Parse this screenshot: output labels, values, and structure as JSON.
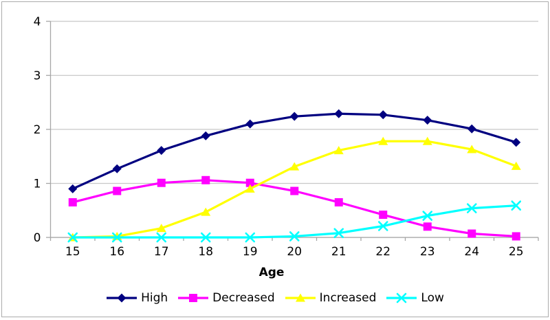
{
  "chart_data": {
    "type": "line",
    "title": "",
    "xlabel": "Age",
    "ylabel": "",
    "categories": [
      15,
      16,
      17,
      18,
      19,
      20,
      21,
      22,
      23,
      24,
      25
    ],
    "yticks": [
      0,
      1,
      2,
      3,
      4
    ],
    "ylim": [
      0,
      4
    ],
    "grid": "horizontal",
    "legend_position": "bottom",
    "series": [
      {
        "name": "High",
        "marker": "diamond",
        "color": "#000080",
        "values": [
          0.9,
          1.27,
          1.61,
          1.88,
          2.1,
          2.24,
          2.29,
          2.27,
          2.17,
          2.01,
          1.76
        ]
      },
      {
        "name": "Decreased",
        "marker": "square",
        "color": "#FF00FF",
        "values": [
          0.65,
          0.86,
          1.01,
          1.06,
          1.01,
          0.86,
          0.65,
          0.42,
          0.2,
          0.07,
          0.02
        ]
      },
      {
        "name": "Increased",
        "marker": "triangle",
        "color": "#FFFF00",
        "values": [
          0.0,
          0.02,
          0.17,
          0.47,
          0.9,
          1.31,
          1.61,
          1.78,
          1.78,
          1.63,
          1.32
        ]
      },
      {
        "name": "Low",
        "marker": "x",
        "color": "#00FFFF",
        "values": [
          0.0,
          0.0,
          0.0,
          0.0,
          0.0,
          0.02,
          0.08,
          0.21,
          0.4,
          0.54,
          0.59
        ]
      }
    ],
    "colors": {
      "gridline": "#c8c8c8",
      "axis": "#a6a6a6",
      "text": "#000000",
      "frame_border": "#ababab",
      "background": "#ffffff"
    }
  }
}
